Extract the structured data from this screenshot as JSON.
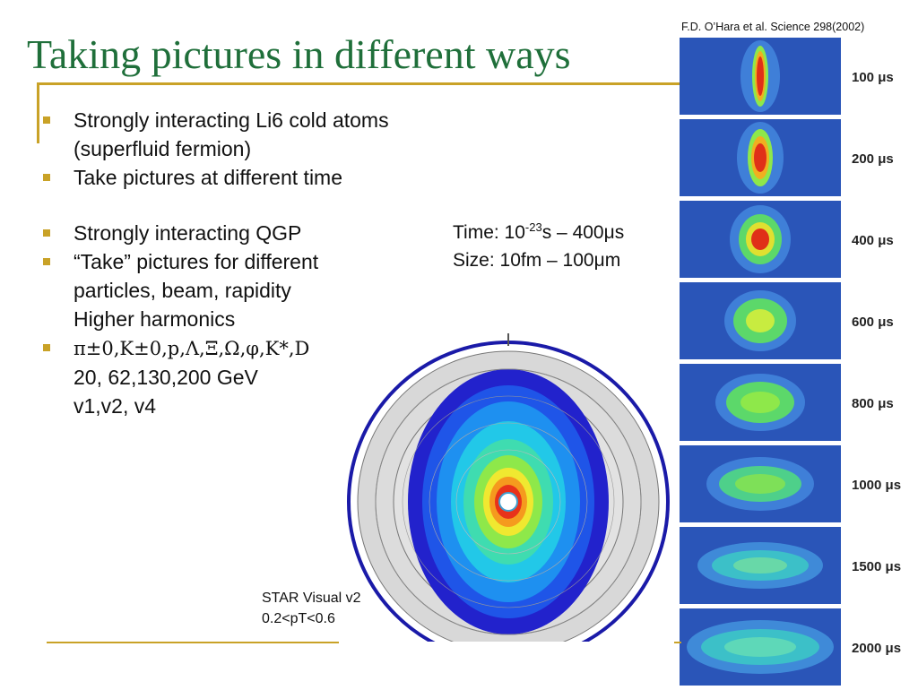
{
  "title": "Taking pictures in different ways",
  "citation": "F.D. O’Hara et al. Science 298(2002)",
  "bullets": {
    "b1": "Strongly interacting Li6 cold atoms (superfluid fermion)",
    "b2": "Take pictures at different time",
    "b3": "Strongly interacting QGP",
    "b4_line1": "“Take” pictures for different",
    "b4_line2": "particles, beam, rapidity",
    "b4_line3": "Higher harmonics",
    "b5_particles": "π±0,K±0,p,Λ,Ξ,Ω,φ,K*,D",
    "b5_line2": "20, 62,130,200 GeV",
    "b5_line3": "v1,v2, v4"
  },
  "timesize": {
    "time_prefix": "Time: 10",
    "time_exp": "-23",
    "time_suffix": "s – 400μs",
    "size": "Size:  10fm – 100μm"
  },
  "star": {
    "line1": "STAR Visual v2",
    "line2": "0.2<pT<0.6"
  },
  "frames": [
    {
      "label": "100 μs",
      "shape": "thin-vertical"
    },
    {
      "label": "200 μs",
      "shape": "vertical"
    },
    {
      "label": "400 μs",
      "shape": "round"
    },
    {
      "label": "600 μs",
      "shape": "round-green"
    },
    {
      "label": "800 μs",
      "shape": "oval-green"
    },
    {
      "label": "1000 μs",
      "shape": "wide-green"
    },
    {
      "label": "1500 μs",
      "shape": "wide-cyan"
    },
    {
      "label": "2000 μs",
      "shape": "very-wide-cyan"
    }
  ],
  "colors": {
    "title": "#1f6f3a",
    "accent_rule": "#c9a227",
    "frame_bg": "#2a55b8"
  }
}
